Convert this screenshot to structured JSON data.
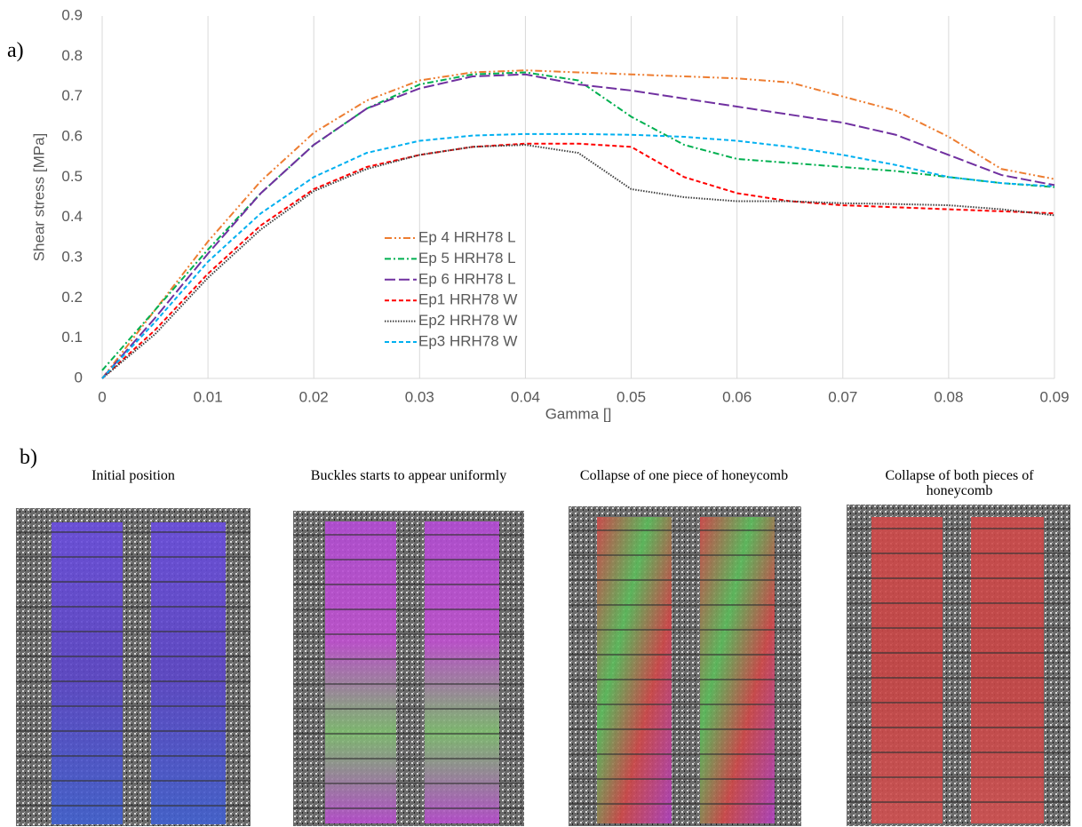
{
  "chart_data": {
    "type": "line",
    "y_label": "Shear stress [MPa]",
    "x_label": "Gamma []",
    "x": [
      0,
      0.005,
      0.01,
      0.015,
      0.02,
      0.025,
      0.03,
      0.035,
      0.04,
      0.045,
      0.05,
      0.055,
      0.06,
      0.065,
      0.07,
      0.075,
      0.08,
      0.085,
      0.09
    ],
    "series": [
      {
        "name": "Ep 4 HRH78 L",
        "color": "#ED7D31",
        "style": "dash-dot-dot",
        "values": [
          0,
          0.17,
          0.34,
          0.49,
          0.61,
          0.69,
          0.74,
          0.76,
          0.765,
          0.76,
          0.755,
          0.75,
          0.745,
          0.735,
          0.7,
          0.665,
          0.6,
          0.52,
          0.495
        ]
      },
      {
        "name": "Ep 5 HRH78 L",
        "color": "#00B050",
        "style": "dash-dot",
        "values": [
          0.02,
          0.17,
          0.32,
          0.46,
          0.58,
          0.67,
          0.73,
          0.755,
          0.76,
          0.74,
          0.65,
          0.58,
          0.545,
          0.535,
          0.525,
          0.515,
          0.5,
          0.485,
          0.475
        ]
      },
      {
        "name": "Ep 6 HRH78 L",
        "color": "#7030A0",
        "style": "long-dash",
        "values": [
          0,
          0.15,
          0.31,
          0.46,
          0.58,
          0.67,
          0.72,
          0.75,
          0.755,
          0.73,
          0.715,
          0.695,
          0.675,
          0.655,
          0.635,
          0.605,
          0.555,
          0.505,
          0.48
        ]
      },
      {
        "name": "Ep1 HRH78 W",
        "color": "#FF0000",
        "style": "dash",
        "values": [
          0,
          0.12,
          0.26,
          0.38,
          0.47,
          0.525,
          0.555,
          0.575,
          0.583,
          0.583,
          0.575,
          0.5,
          0.46,
          0.44,
          0.43,
          0.425,
          0.42,
          0.415,
          0.41
        ]
      },
      {
        "name": "Ep2 HRH78 W",
        "color": "#404040",
        "style": "dot",
        "values": [
          0,
          0.11,
          0.25,
          0.37,
          0.465,
          0.52,
          0.555,
          0.575,
          0.58,
          0.56,
          0.47,
          0.45,
          0.44,
          0.44,
          0.435,
          0.433,
          0.43,
          0.42,
          0.405
        ]
      },
      {
        "name": "Ep3 HRH78 W",
        "color": "#00B0F0",
        "style": "dash",
        "values": [
          0,
          0.14,
          0.29,
          0.41,
          0.5,
          0.56,
          0.59,
          0.603,
          0.607,
          0.607,
          0.605,
          0.6,
          0.59,
          0.575,
          0.555,
          0.53,
          0.5,
          0.485,
          0.477
        ]
      }
    ],
    "xlim": [
      0,
      0.09
    ],
    "xticks": [
      0,
      0.01,
      0.02,
      0.03,
      0.04,
      0.05,
      0.06,
      0.07,
      0.08,
      0.09
    ],
    "ylim": [
      0,
      0.9
    ],
    "yticks": [
      0,
      0.1,
      0.2,
      0.3,
      0.4,
      0.5,
      0.6,
      0.7,
      0.8,
      0.9
    ],
    "grid": "x",
    "legend": "center"
  },
  "labels": {
    "a": "a)",
    "b": "b)"
  },
  "images": [
    {
      "caption": "Initial position"
    },
    {
      "caption": "Buckles starts to appear uniformly"
    },
    {
      "caption": "Collapse of one piece of honeycomb"
    },
    {
      "caption": "Collapse of both pieces of honeycomb"
    }
  ]
}
